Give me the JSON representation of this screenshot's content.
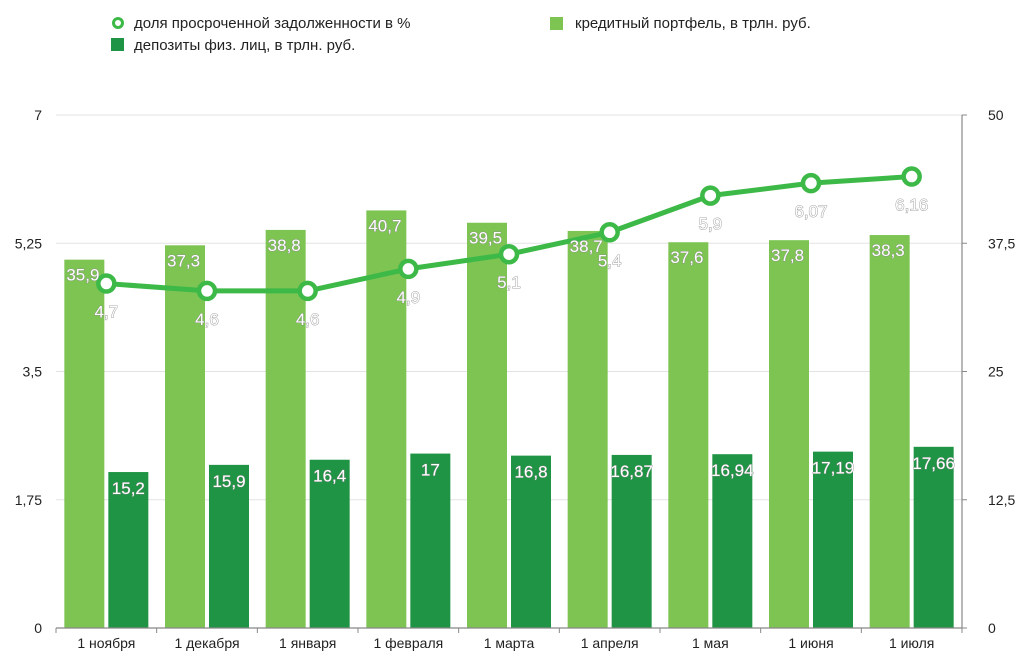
{
  "chart_data": {
    "type": "bar+line",
    "categories": [
      "1 ноября",
      "1 декабря",
      "1 января",
      "1 февраля",
      "1 марта",
      "1 апреля",
      "1 мая",
      "1 июня",
      "1 июля"
    ],
    "series": [
      {
        "name": "кредитный портфель, в трлн. руб.",
        "type": "bar",
        "axis": "right",
        "color": "#7dc453",
        "values": [
          35.9,
          37.3,
          38.8,
          40.7,
          39.5,
          38.7,
          37.6,
          37.8,
          38.3
        ],
        "labels": [
          "35,9",
          "37,3",
          "38,8",
          "40,7",
          "39,5",
          "38,7",
          "37,6",
          "37,8",
          "38,3"
        ]
      },
      {
        "name": "депозиты физ. лиц, в трлн. руб.",
        "type": "bar",
        "axis": "right",
        "color": "#1e9444",
        "values": [
          15.2,
          15.9,
          16.4,
          17,
          16.8,
          16.87,
          16.94,
          17.19,
          17.66
        ],
        "labels": [
          "15,2",
          "15,9",
          "16,4",
          "17",
          "16,8",
          "16,87",
          "16,94",
          "17,19",
          "17,66"
        ]
      },
      {
        "name": "доля просроченной задолженности в %",
        "type": "line",
        "axis": "left",
        "color": "#3db948",
        "values": [
          4.7,
          4.6,
          4.6,
          4.9,
          5.1,
          5.4,
          5.9,
          6.07,
          6.16
        ],
        "labels": [
          "4,7",
          "4,6",
          "4,6",
          "4,9",
          "5,1",
          "5,4",
          "5,9",
          "6,07",
          "6,16"
        ]
      }
    ],
    "y_left": {
      "min": 0,
      "max": 7,
      "ticks": [
        "0",
        "1,75",
        "3,5",
        "5,25",
        "7"
      ],
      "tick_values": [
        0,
        1.75,
        3.5,
        5.25,
        7
      ]
    },
    "y_right": {
      "min": 0,
      "max": 50,
      "ticks": [
        "0",
        "12,5",
        "25",
        "37,5",
        "50"
      ],
      "tick_values": [
        0,
        12.5,
        25,
        37.5,
        50
      ]
    },
    "grid": true,
    "legend": {
      "position": "top",
      "items": [
        {
          "key": "line",
          "label": "доля просроченной задолженности в %"
        },
        {
          "key": "bar1",
          "label": "кредитный портфель, в трлн. руб."
        },
        {
          "key": "bar2",
          "label": "депозиты физ. лиц, в трлн. руб."
        }
      ]
    }
  }
}
